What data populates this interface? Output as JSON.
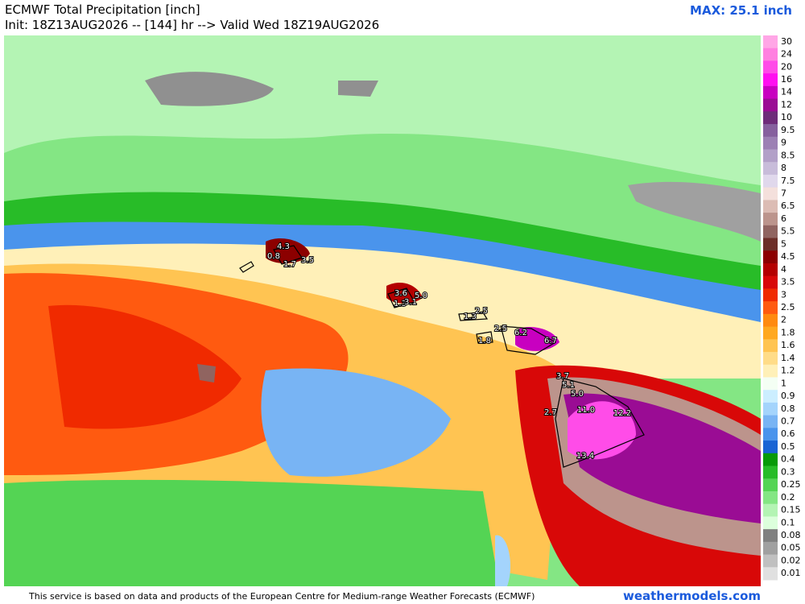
{
  "header": {
    "title": "ECMWF Total Precipitation [inch]",
    "subtitle": "Init: 18Z13AUG2026 -- [144] hr --> Valid Wed 18Z19AUG2026",
    "max": "MAX: 25.1 inch"
  },
  "map_labels": [
    "4.3",
    "0.8",
    "1.7",
    "3.5",
    "3.6",
    "5.0",
    "1.3",
    "3.1",
    "1.3",
    "2.5",
    "2.5",
    "1.8",
    "6.2",
    "6.7",
    "3.7",
    "5.1",
    "5.0",
    "2.7",
    "11.0",
    "12.2",
    "13.4"
  ],
  "legend": {
    "items": [
      {
        "label": "30",
        "color": "#ffa6e6"
      },
      {
        "label": "24",
        "color": "#ff80e0"
      },
      {
        "label": "20",
        "color": "#ff4ce8"
      },
      {
        "label": "16",
        "color": "#ff10f0"
      },
      {
        "label": "14",
        "color": "#c800c0"
      },
      {
        "label": "12",
        "color": "#9a0c94"
      },
      {
        "label": "10",
        "color": "#6e2c7a"
      },
      {
        "label": "9.5",
        "color": "#86609e"
      },
      {
        "label": "9",
        "color": "#9c80b4"
      },
      {
        "label": "8.5",
        "color": "#b2a0c8"
      },
      {
        "label": "8",
        "color": "#c8bcda"
      },
      {
        "label": "7.5",
        "color": "#e0d8ec"
      },
      {
        "label": "7",
        "color": "#f4e0dc"
      },
      {
        "label": "6.5",
        "color": "#dcbcb4"
      },
      {
        "label": "6",
        "color": "#bc948c"
      },
      {
        "label": "5.5",
        "color": "#906460"
      },
      {
        "label": "5",
        "color": "#6c2e28"
      },
      {
        "label": "4.5",
        "color": "#8c0000"
      },
      {
        "label": "4",
        "color": "#b40000"
      },
      {
        "label": "3.5",
        "color": "#d80808"
      },
      {
        "label": "3",
        "color": "#f02a00"
      },
      {
        "label": "2.5",
        "color": "#ff5a10"
      },
      {
        "label": "2",
        "color": "#ff8a10"
      },
      {
        "label": "1.8",
        "color": "#ffa820"
      },
      {
        "label": "1.6",
        "color": "#ffc452"
      },
      {
        "label": "1.4",
        "color": "#ffdc88"
      },
      {
        "label": "1.2",
        "color": "#fff0b8"
      },
      {
        "label": "1",
        "color": "#f4fff4"
      },
      {
        "label": "0.9",
        "color": "#cceeff"
      },
      {
        "label": "0.8",
        "color": "#a4d4fc"
      },
      {
        "label": "0.7",
        "color": "#78b4f4"
      },
      {
        "label": "0.6",
        "color": "#4a94ec"
      },
      {
        "label": "0.5",
        "color": "#1a64d4"
      },
      {
        "label": "0.4",
        "color": "#089a08"
      },
      {
        "label": "0.3",
        "color": "#28bc28"
      },
      {
        "label": "0.25",
        "color": "#54d454"
      },
      {
        "label": "0.2",
        "color": "#84e684"
      },
      {
        "label": "0.15",
        "color": "#b4f4b4"
      },
      {
        "label": "0.1",
        "color": "#dcffdc"
      },
      {
        "label": "0.08",
        "color": "#808080"
      },
      {
        "label": "0.05",
        "color": "#a0a0a0"
      },
      {
        "label": "0.02",
        "color": "#c0c0c0"
      },
      {
        "label": "0.01",
        "color": "#e0e0e0"
      }
    ]
  },
  "footer": {
    "note": "This service is based on data and products of the European Centre for Medium-range Weather Forecasts (ECMWF)",
    "site": "weathermodels.com"
  }
}
